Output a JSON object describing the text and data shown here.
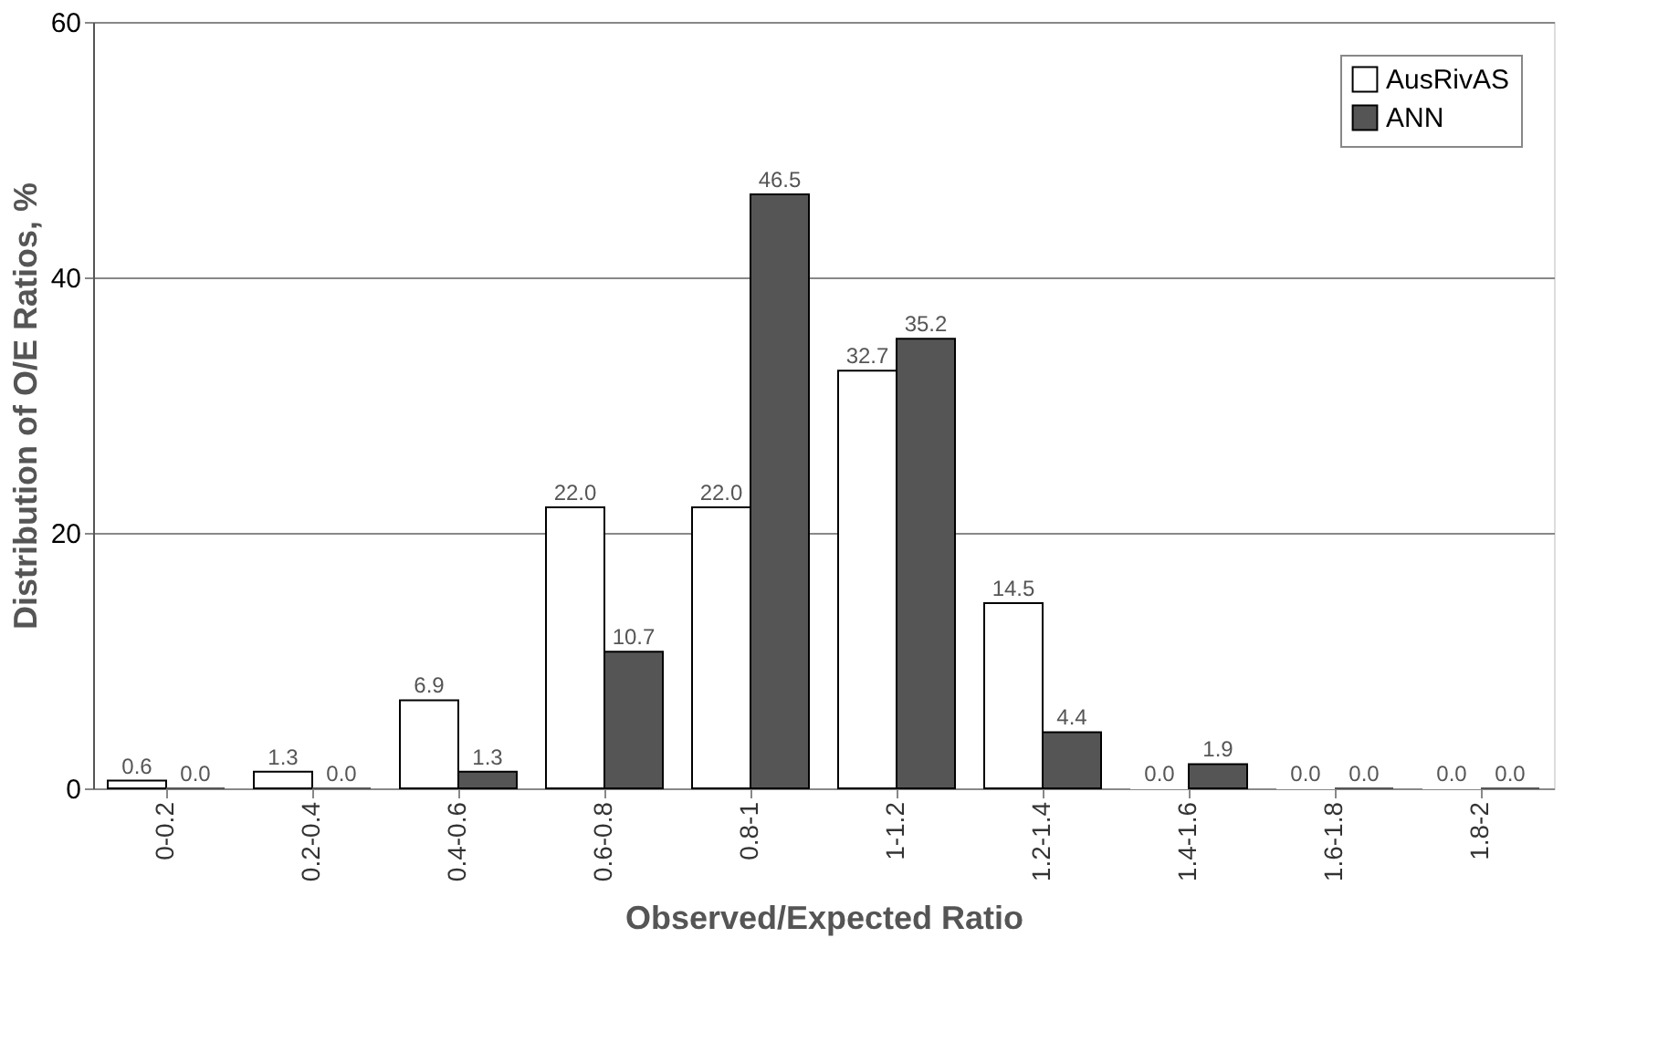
{
  "chart_data": {
    "type": "bar",
    "xlabel": "Observed/Expected Ratio",
    "ylabel": "Distribution of O/E Ratios, %",
    "categories": [
      "0-0.2",
      "0.2-0.4",
      "0.4-0.6",
      "0.6-0.8",
      "0.8-1",
      "1-1.2",
      "1.2-1.4",
      "1.4-1.6",
      "1.6-1.8",
      "1.8-2"
    ],
    "series": [
      {
        "name": "AusRivAS",
        "color": "#ffffff",
        "values": [
          0.6,
          1.3,
          6.9,
          22,
          22,
          32.7,
          14.5,
          0,
          0,
          0
        ],
        "value_labels": [
          "0.6",
          "1.3",
          "6.9",
          "22.0",
          "22.0",
          "32.7",
          "14.5",
          "0.0",
          "0.0",
          "0.0"
        ]
      },
      {
        "name": "ANN",
        "color": "#555555",
        "values": [
          0,
          0,
          1.3,
          10.7,
          46.5,
          35.2,
          4.4,
          1.9,
          0,
          0
        ],
        "value_labels": [
          "0.0",
          "0.0",
          "1.3",
          "10.7",
          "46.5",
          "35.2",
          "4.4",
          "1.9",
          "0.0",
          "0.0"
        ]
      }
    ],
    "ylim": [
      0,
      60
    ],
    "yticks": [
      0,
      20,
      40,
      60
    ],
    "grid": "y",
    "legend": "top right"
  }
}
